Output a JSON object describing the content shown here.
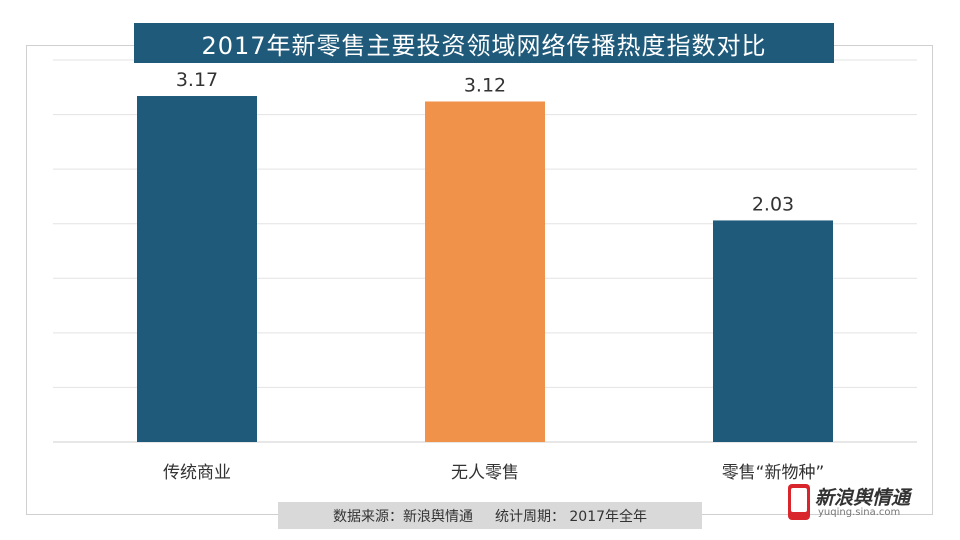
{
  "chart_data": {
    "type": "bar",
    "title": "2017年新零售主要投资领域网络传播热度指数对比",
    "categories": [
      "传统商业",
      "无人零售",
      "零售“新物种”"
    ],
    "values": [
      3.17,
      3.12,
      2.03
    ],
    "value_labels": [
      "3.17",
      "3.12",
      "2.03"
    ],
    "bar_colors": [
      "#1f5a7a",
      "#f0924a",
      "#1f5a7a"
    ],
    "ylim": [
      0,
      3.5
    ],
    "grid": true,
    "legend": "none",
    "xlabel": "",
    "ylabel": ""
  },
  "footer": {
    "source": "数据来源：新浪舆情通",
    "period": "统计周期： 2017年全年"
  },
  "logo": {
    "name": "新浪舆情通",
    "url": "yuqing.sina.com"
  },
  "colors": {
    "title_bg": "#1f5a7a",
    "footer_bg": "#d9d9d9",
    "logo_red": "#d9262c"
  }
}
